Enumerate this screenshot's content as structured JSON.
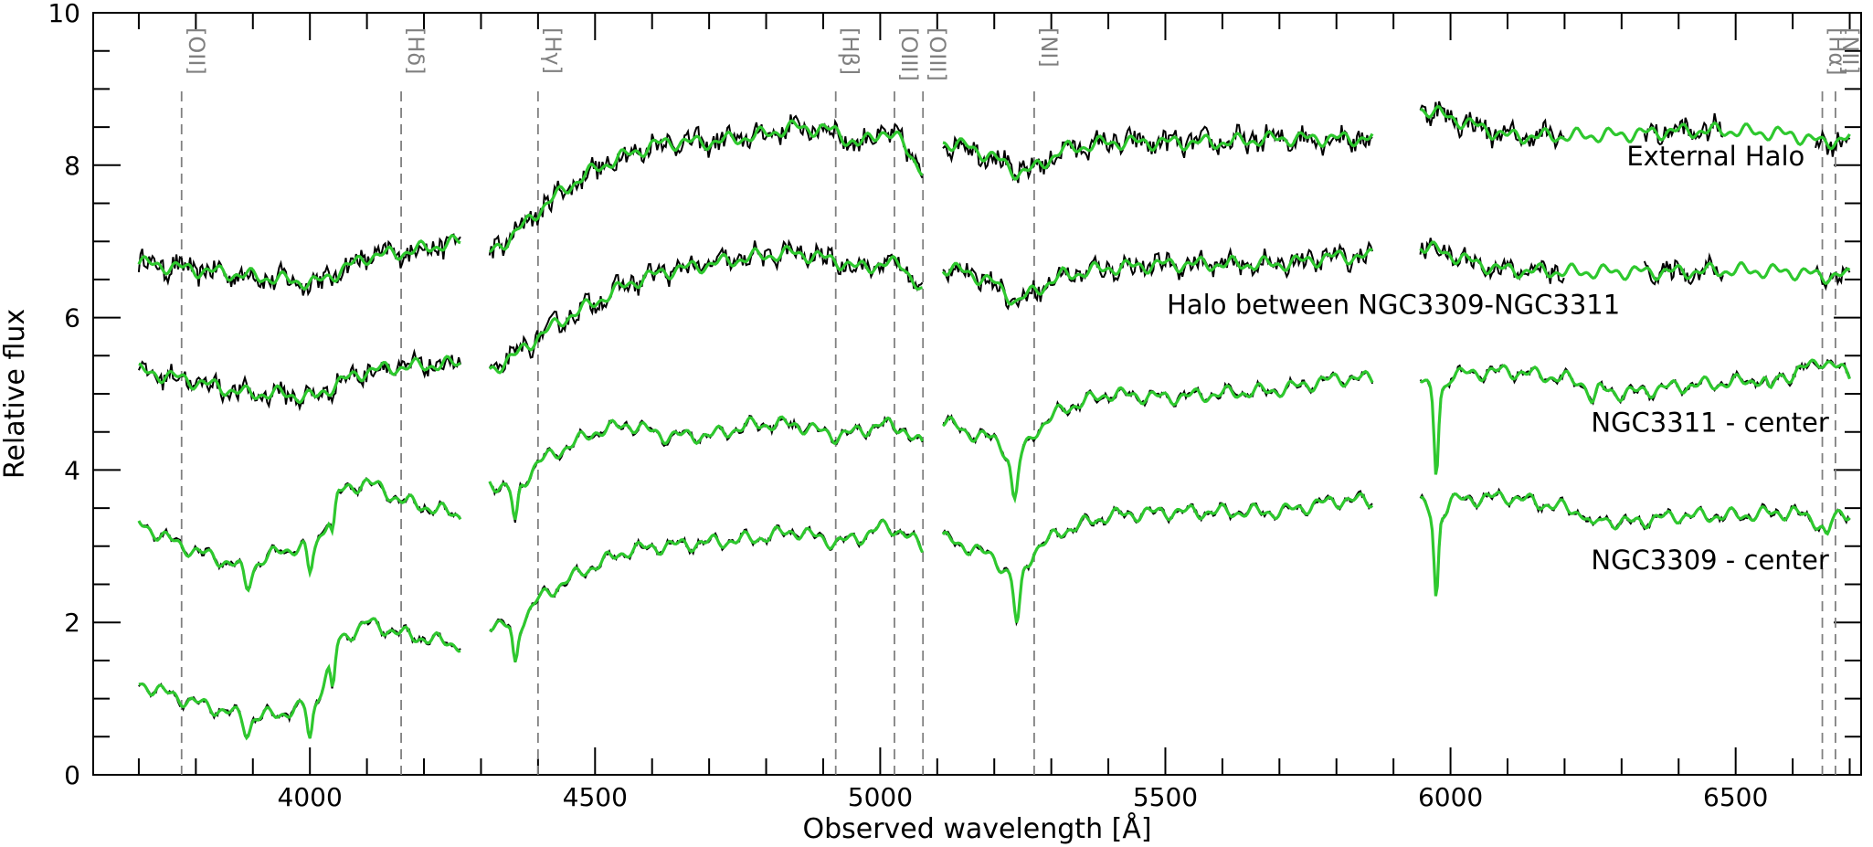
{
  "chart_data": {
    "type": "line",
    "title": "",
    "xlabel": "Observed wavelength [Å]",
    "ylabel": "Relative flux",
    "xlim": [
      3620,
      6720
    ],
    "ylim": [
      0,
      10
    ],
    "xticks": [
      "4000",
      "4500",
      "5000",
      "5500",
      "6000",
      "6500"
    ],
    "yticks": [
      "0",
      "2",
      "4",
      "6",
      "8",
      "10"
    ],
    "grid": false,
    "gaps": [
      [
        4265,
        4315
      ],
      [
        5075,
        5110
      ],
      [
        5865,
        5945
      ]
    ],
    "colors": {
      "observed": "#000000",
      "model": "#2ec82e",
      "line_marker": "#808080"
    },
    "spectral_lines": [
      {
        "label": "[OII]",
        "wavelength": 3775
      },
      {
        "label": "[Hδ]",
        "wavelength": 4160
      },
      {
        "label": "[Hγ]",
        "wavelength": 4400
      },
      {
        "label": "[Hβ]",
        "wavelength": 4922
      },
      {
        "label": "[OIII]",
        "wavelength": 5025
      },
      {
        "label": "[OIII]",
        "wavelength": 5075
      },
      {
        "label": "[NI]",
        "wavelength": 5270
      },
      {
        "label": "[Hα]",
        "wavelength": 6652
      },
      {
        "label": "[NII]",
        "wavelength": 6675
      }
    ],
    "series": [
      {
        "name": "External Halo",
        "label_x": 6465,
        "label_y": 8.0,
        "noise": 0.13,
        "mask": [
          [
            6200,
            6340
          ],
          [
            6480,
            6640
          ]
        ],
        "x": [
          3700,
          3775,
          3890,
          3950,
          4010,
          4050,
          4100,
          4160,
          4265,
          4315,
          4360,
          4400,
          4450,
          4500,
          4560,
          4620,
          4700,
          4780,
          4850,
          4922,
          4960,
          5000,
          5040,
          5075,
          5110,
          5150,
          5200,
          5240,
          5270,
          5320,
          5400,
          5500,
          5600,
          5700,
          5800,
          5865,
          5945,
          5990,
          6050,
          6100,
          6200,
          6300,
          6400,
          6500,
          6600,
          6650,
          6700
        ],
        "values": [
          6.72,
          6.65,
          6.55,
          6.5,
          6.45,
          6.6,
          6.8,
          6.85,
          7.0,
          6.85,
          7.1,
          7.4,
          7.7,
          7.95,
          8.15,
          8.3,
          8.3,
          8.38,
          8.5,
          8.45,
          8.25,
          8.45,
          8.3,
          7.9,
          8.3,
          8.25,
          8.1,
          7.9,
          7.95,
          8.2,
          8.3,
          8.3,
          8.3,
          8.35,
          8.35,
          8.35,
          8.75,
          8.65,
          8.5,
          8.38,
          8.38,
          8.4,
          8.45,
          8.45,
          8.4,
          8.3,
          8.35
        ]
      },
      {
        "name": "Halo between NGC3309-NGC3311",
        "label_x": 5900,
        "label_y": 6.05,
        "noise": 0.11,
        "mask": [
          [
            6200,
            6340
          ],
          [
            6480,
            6640
          ]
        ],
        "x": [
          3700,
          3775,
          3890,
          3950,
          4010,
          4050,
          4100,
          4160,
          4265,
          4315,
          4360,
          4400,
          4450,
          4500,
          4560,
          4620,
          4700,
          4780,
          4850,
          4922,
          4960,
          5000,
          5040,
          5075,
          5110,
          5150,
          5200,
          5240,
          5270,
          5320,
          5400,
          5500,
          5600,
          5700,
          5800,
          5865,
          5945,
          5990,
          6050,
          6100,
          6200,
          6300,
          6400,
          6500,
          6600,
          6650,
          6700
        ],
        "values": [
          5.3,
          5.2,
          5.0,
          5.0,
          4.95,
          5.15,
          5.3,
          5.35,
          5.4,
          5.3,
          5.5,
          5.75,
          6.0,
          6.2,
          6.45,
          6.6,
          6.7,
          6.8,
          6.85,
          6.75,
          6.65,
          6.7,
          6.7,
          6.3,
          6.65,
          6.6,
          6.45,
          6.2,
          6.35,
          6.55,
          6.65,
          6.7,
          6.7,
          6.7,
          6.8,
          6.8,
          6.95,
          6.85,
          6.7,
          6.62,
          6.6,
          6.6,
          6.6,
          6.62,
          6.6,
          6.55,
          6.55
        ]
      },
      {
        "name": "NGC3311 - center",
        "label_x": 6455,
        "label_y": 4.5,
        "noise": 0.04,
        "x": [
          3700,
          3775,
          3890,
          3950,
          4010,
          4050,
          4100,
          4160,
          4265,
          4315,
          4360,
          4400,
          4450,
          4500,
          4560,
          4620,
          4700,
          4780,
          4850,
          4922,
          4960,
          5000,
          5040,
          5075,
          5110,
          5150,
          5200,
          5240,
          5270,
          5320,
          5400,
          5500,
          5600,
          5700,
          5800,
          5865,
          5945,
          5975,
          6000,
          6100,
          6200,
          6300,
          6400,
          6500,
          6600,
          6650,
          6700
        ],
        "values": [
          3.3,
          3.0,
          2.7,
          2.95,
          3.0,
          3.7,
          3.85,
          3.6,
          3.4,
          3.85,
          3.7,
          4.1,
          4.3,
          4.5,
          4.6,
          4.45,
          4.45,
          4.6,
          4.6,
          4.45,
          4.5,
          4.6,
          4.55,
          4.3,
          4.65,
          4.5,
          4.4,
          4.1,
          4.5,
          4.8,
          5.0,
          4.95,
          5.0,
          5.05,
          5.2,
          5.2,
          5.25,
          4.9,
          5.25,
          5.3,
          5.2,
          5.0,
          5.1,
          5.15,
          5.25,
          5.45,
          5.25
        ],
        "dips": [
          [
            3890,
            0.25,
            8
          ],
          [
            4000,
            0.35,
            6
          ],
          [
            4040,
            0.35,
            5
          ],
          [
            4360,
            0.4,
            6
          ],
          [
            5235,
            0.55,
            7
          ],
          [
            5975,
            1.0,
            5
          ],
          [
            6250,
            0.2,
            8
          ],
          [
            6560,
            0.2,
            7
          ]
        ]
      },
      {
        "name": "NGC3309 - center",
        "label_x": 6455,
        "label_y": 2.7,
        "noise": 0.035,
        "x": [
          3700,
          3775,
          3890,
          3950,
          4010,
          4050,
          4100,
          4160,
          4265,
          4315,
          4360,
          4400,
          4450,
          4500,
          4560,
          4620,
          4700,
          4780,
          4850,
          4922,
          4960,
          5000,
          5040,
          5075,
          5110,
          5150,
          5200,
          5240,
          5270,
          5320,
          5400,
          5500,
          5600,
          5700,
          5800,
          5865,
          5945,
          5975,
          6000,
          6100,
          6200,
          6300,
          6400,
          6500,
          6600,
          6650,
          6700
        ],
        "values": [
          1.2,
          1.0,
          0.75,
          0.8,
          0.95,
          1.75,
          2.0,
          1.85,
          1.7,
          2.0,
          1.9,
          2.3,
          2.55,
          2.75,
          2.95,
          3.0,
          3.05,
          3.1,
          3.2,
          3.05,
          3.1,
          3.25,
          3.2,
          2.95,
          3.1,
          3.0,
          2.85,
          2.5,
          2.95,
          3.2,
          3.4,
          3.45,
          3.45,
          3.45,
          3.6,
          3.6,
          3.6,
          3.3,
          3.6,
          3.65,
          3.5,
          3.3,
          3.4,
          3.4,
          3.45,
          3.3,
          3.45
        ],
        "dips": [
          [
            3890,
            0.2,
            8
          ],
          [
            4000,
            0.45,
            6
          ],
          [
            4040,
            0.45,
            5
          ],
          [
            4360,
            0.45,
            6
          ],
          [
            5240,
            0.55,
            7
          ],
          [
            5975,
            1.0,
            5
          ],
          [
            6250,
            0.2,
            8
          ],
          [
            6660,
            0.2,
            7
          ]
        ]
      }
    ]
  }
}
